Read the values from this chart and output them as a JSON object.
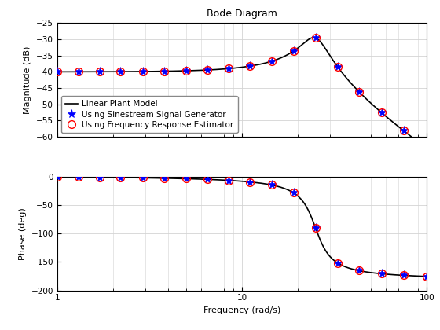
{
  "title": "Bode Diagram",
  "xlabel": "Frequency (rad/s)",
  "ylabel_mag": "Magnitude (dB)",
  "ylabel_phase": "Phase (deg)",
  "freq_min": 1,
  "freq_max": 100,
  "mag_ylim": [
    -60,
    -25
  ],
  "mag_yticks": [
    -60,
    -55,
    -50,
    -45,
    -40,
    -35,
    -30,
    -25
  ],
  "phase_ylim": [
    -200,
    0
  ],
  "phase_yticks": [
    -200,
    -150,
    -100,
    -50,
    0
  ],
  "legend": [
    "Linear Plant Model",
    "Using Sinestream Signal Generator",
    "Using Frequency Response Estimator"
  ],
  "line_color": "#000000",
  "star_color": "#0000ff",
  "circle_color": "#ff0000",
  "background_color": "#ffffff",
  "grid_color": "#d3d3d3",
  "system": {
    "wn": 25.0,
    "zeta": 0.15,
    "K": 0.01
  },
  "marker_freqs": [
    1.0,
    1.3,
    1.7,
    2.2,
    2.9,
    3.8,
    5.0,
    6.5,
    8.5,
    11.0,
    14.5,
    19.0,
    25.0,
    33.0,
    43.0,
    57.0,
    75.0,
    100.0
  ]
}
